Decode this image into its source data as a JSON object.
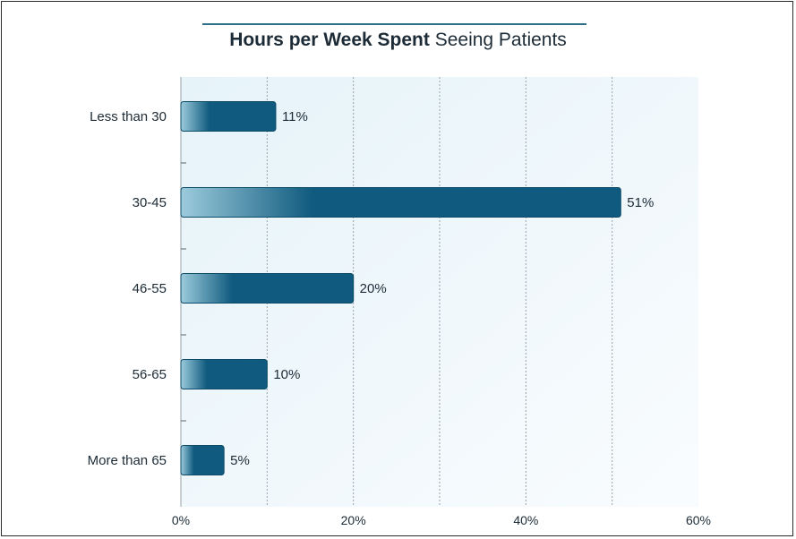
{
  "title": {
    "bold": "Hours per Week Spent",
    "regular": "Seeing Patients"
  },
  "chart_data": {
    "type": "bar",
    "orientation": "horizontal",
    "title": "Hours per Week Spent Seeing Patients",
    "categories": [
      "Less than 30",
      "30-45",
      "46-55",
      "56-65",
      "More than 65"
    ],
    "values": [
      11,
      51,
      20,
      10,
      5
    ],
    "value_labels": [
      "11%",
      "51%",
      "20%",
      "10%",
      "5%"
    ],
    "xlim": [
      0,
      60
    ],
    "xticks": [
      0,
      20,
      40,
      60
    ],
    "xtick_labels": [
      "0%",
      "20%",
      "40%",
      "60%"
    ],
    "gridlines": [
      10,
      20,
      30,
      40,
      50
    ],
    "grid": true,
    "xlabel": "",
    "ylabel": ""
  },
  "colors": {
    "bar_dark": "#0f5a7e",
    "bar_light": "#9ccbdc",
    "plot_bg": "#eef7fb",
    "title_rule": "#2f6f86",
    "text": "#1c2b36"
  }
}
